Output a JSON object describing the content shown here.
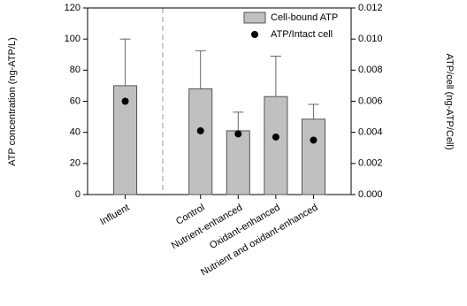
{
  "chart_data": {
    "type": "bar",
    "y_label": "ATP concentration (ng-ATP/L)",
    "y2_label": "ATP/cell (ng-ATP/Cell)",
    "categories": [
      "Influent",
      null,
      "Control",
      "Nutrient-enhanced",
      "Oxidant-enhanced",
      "Nutrient and oxidant-enhanced"
    ],
    "series": [
      {
        "name": "Cell-bound ATP",
        "color": "#c0c0c0",
        "values": [
          70,
          null,
          68,
          41,
          63,
          48.5
        ],
        "errors": [
          30,
          null,
          24.5,
          12,
          26,
          9.5
        ]
      },
      {
        "name": "ATP/Intact cell",
        "color": "#000000",
        "axis": "y2",
        "values": [
          0.006,
          null,
          0.0041,
          0.0039,
          0.0037,
          0.0035
        ]
      }
    ],
    "ylim": [
      0,
      120
    ],
    "yticks": [
      0,
      20,
      40,
      60,
      80,
      100,
      120
    ],
    "y2lim": [
      0,
      0.012
    ],
    "y2ticks": [
      {
        "value": 0,
        "label": "0.000"
      },
      {
        "value": 0.002,
        "label": "0.002"
      },
      {
        "value": 0.004,
        "label": "0.004"
      },
      {
        "value": 0.006,
        "label": "0.006"
      },
      {
        "value": 0.008,
        "label": "0.008"
      },
      {
        "value": 0.01,
        "label": "0.010"
      },
      {
        "value": 0.012,
        "label": "0.012"
      }
    ],
    "legend": "upper right"
  }
}
